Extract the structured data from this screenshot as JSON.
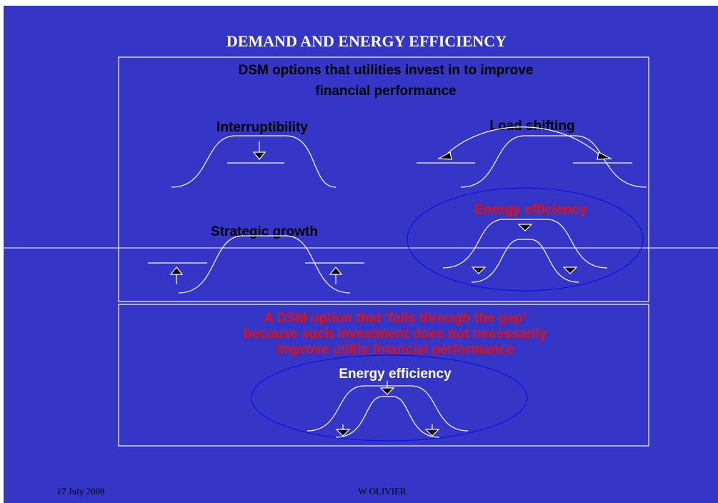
{
  "title": "DEMAND AND ENERGY EFFICIENCY",
  "box1": {
    "heading": [
      "DSM options that utilities invest in to improve",
      "financial performance"
    ],
    "items": [
      "Interruptibility",
      "Load shifting",
      "Strategic growth",
      "Energy efficiency"
    ]
  },
  "box2": {
    "heading": [
      "A DSM option that ‘falls through the gap’",
      "because such investment does not necessarily",
      "improve utility financial performance"
    ],
    "label": "Energy efficiency"
  },
  "footer": {
    "date": "17 July 2008",
    "author": "W OLIVIER"
  }
}
